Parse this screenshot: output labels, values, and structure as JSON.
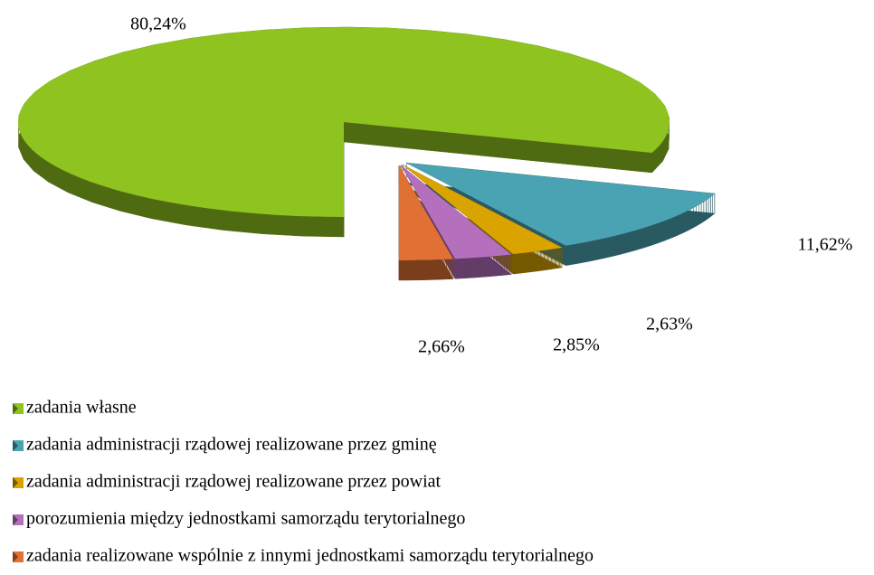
{
  "chart_data": {
    "type": "pie",
    "categories": [
      "zadania własne",
      "zadania administracji rządowej realizowane przez gminę",
      "zadania administracji rządowej realizowane przez powiat",
      "porozumienia między jednostkami samorządu terytorialnego",
      "zadania realizowane wspólnie z innymi jednostkami samorządu terytorialnego"
    ],
    "values": [
      80.24,
      11.62,
      2.63,
      2.85,
      2.66
    ],
    "value_labels": [
      "80,24%",
      "11,62%",
      "2,63%",
      "2,85%",
      "2,66%"
    ],
    "colors": [
      "#8fc31f",
      "#4aa3b3",
      "#d9a400",
      "#b46fbd",
      "#e07033"
    ],
    "legend": "bottom"
  }
}
